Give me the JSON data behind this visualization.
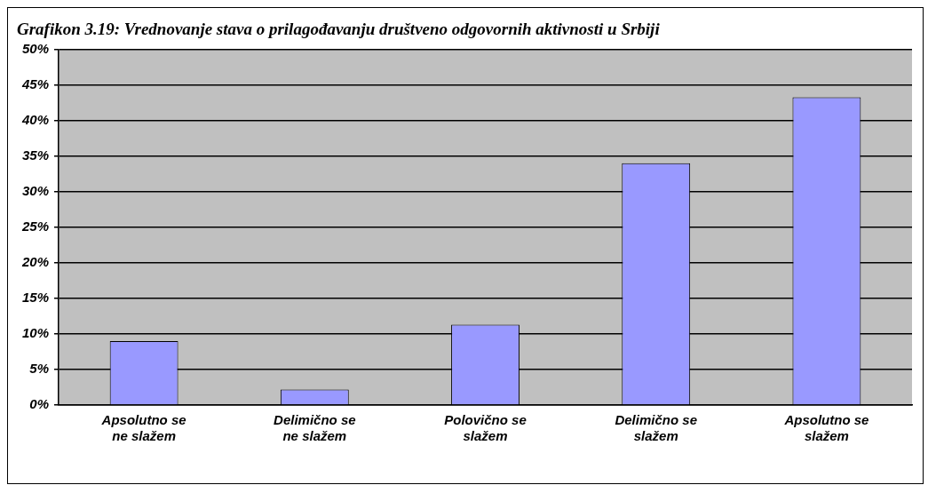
{
  "chart_data": {
    "type": "bar",
    "title": "Grafikon 3.19: Vrednovanje stava o prilagođavanju društveno odgovornih aktivnosti u Srbiji",
    "categories": [
      "Apsolutno se ne slažem",
      "Delimično se ne slažem",
      "Polovično se slažem",
      "Delimično se slažem",
      "Apsolutno se slažem"
    ],
    "values": [
      9.0,
      2.2,
      11.3,
      34.0,
      43.3
    ],
    "color": "#9999ff",
    "ylim": [
      0,
      50
    ],
    "yticks": [
      {
        "value": 0,
        "label": "0%"
      },
      {
        "value": 5,
        "label": "5%"
      },
      {
        "value": 10,
        "label": "10%"
      },
      {
        "value": 15,
        "label": "15%"
      },
      {
        "value": 20,
        "label": "20%"
      },
      {
        "value": 25,
        "label": "25%"
      },
      {
        "value": 30,
        "label": "30%"
      },
      {
        "value": 35,
        "label": "35%"
      },
      {
        "value": 40,
        "label": "40%"
      },
      {
        "value": 45,
        "label": "45%"
      },
      {
        "value": 50,
        "label": "50%"
      }
    ],
    "grid": "y",
    "legend": false
  }
}
